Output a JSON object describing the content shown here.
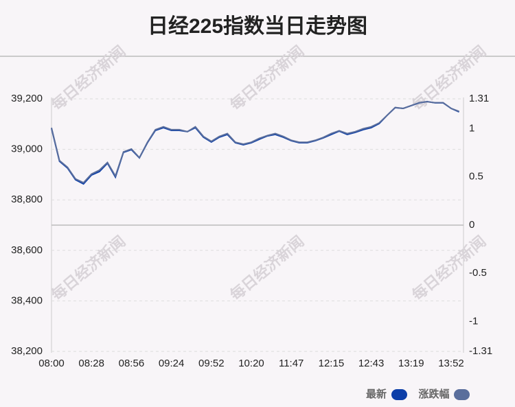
{
  "chart_data": {
    "type": "line",
    "title": "日经225指数当日走势图",
    "watermark": "每日经济新闻",
    "categories": [
      "08:00",
      null,
      null,
      null,
      null,
      "08:28",
      null,
      null,
      null,
      null,
      "08:56",
      null,
      null,
      null,
      null,
      "09:24",
      null,
      null,
      null,
      null,
      "09:52",
      null,
      null,
      null,
      null,
      "10:20",
      null,
      null,
      null,
      null,
      "11:47",
      null,
      null,
      null,
      null,
      "12:15",
      null,
      null,
      null,
      null,
      "12:43",
      null,
      null,
      null,
      null,
      "13:19",
      null,
      null,
      null,
      null,
      "13:52",
      null
    ],
    "series": [
      {
        "name": "最新",
        "color": "#0d3fa8",
        "values": [
          39083,
          38953,
          38926,
          38880,
          38863,
          38898,
          38912,
          38945,
          38890,
          38988,
          38999,
          38966,
          39026,
          39075,
          39086,
          39075,
          39075,
          39070,
          39086,
          39048,
          39029,
          39048,
          39059,
          39026,
          39018,
          39026,
          39040,
          39053,
          39059,
          39048,
          39034,
          39026,
          39026,
          39034,
          39045,
          39059,
          39072,
          39059,
          39067,
          39078,
          39086,
          39102,
          39135,
          39165,
          39162,
          39173,
          39184,
          39189,
          39184,
          39184,
          39162,
          39148
        ]
      },
      {
        "name": "涨跌幅",
        "color": "#5a6e9c",
        "axis": "y2",
        "values": [
          1.01,
          0.67,
          0.6,
          0.48,
          0.44,
          0.53,
          0.57,
          0.65,
          0.51,
          0.76,
          0.79,
          0.7,
          0.86,
          0.99,
          1.02,
          0.99,
          0.99,
          0.97,
          1.02,
          0.92,
          0.87,
          0.92,
          0.95,
          0.86,
          0.84,
          0.86,
          0.9,
          0.93,
          0.95,
          0.92,
          0.88,
          0.86,
          0.86,
          0.88,
          0.91,
          0.95,
          0.98,
          0.95,
          0.97,
          1.0,
          1.02,
          1.06,
          1.14,
          1.22,
          1.21,
          1.24,
          1.27,
          1.28,
          1.27,
          1.27,
          1.21,
          1.18
        ]
      }
    ],
    "ylim": [
      38200,
      39200
    ],
    "yticks": [
      {
        "value": 38200,
        "label": "38,200"
      },
      {
        "value": 38400,
        "label": "38,400"
      },
      {
        "value": 38600,
        "label": "38,600"
      },
      {
        "value": 38800,
        "label": "38,800"
      },
      {
        "value": 39000,
        "label": "39,000"
      },
      {
        "value": 39200,
        "label": "39,200"
      }
    ],
    "y2lim": [
      -1.31,
      1.31
    ],
    "y2ticks": [
      -1.31,
      -1,
      -0.5,
      0,
      0.5,
      1,
      1.31
    ],
    "grid": true,
    "legend": "bottom-right"
  }
}
